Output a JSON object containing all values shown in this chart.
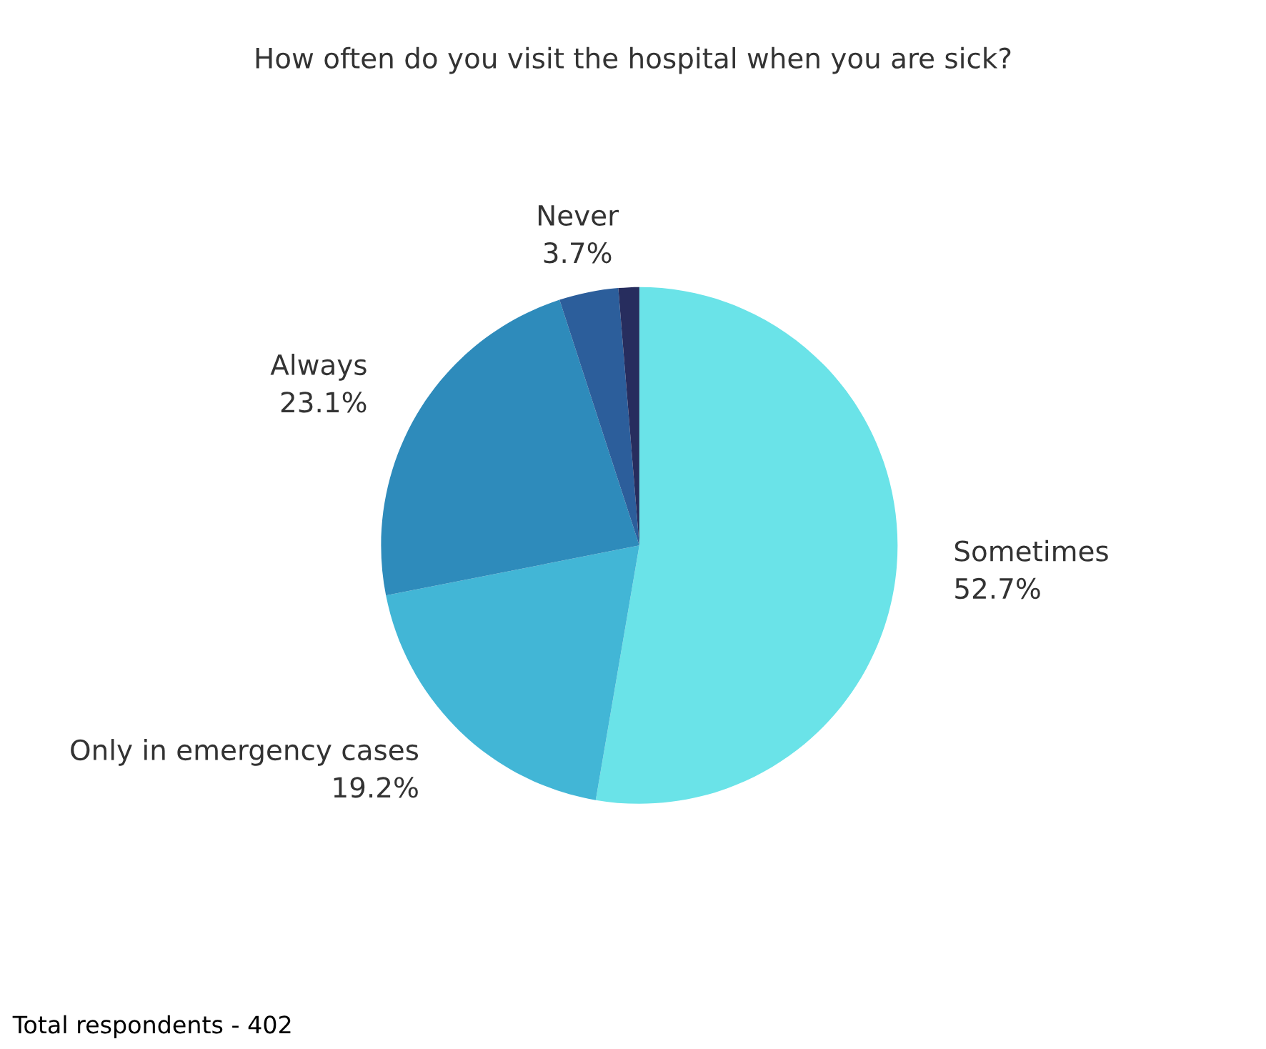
{
  "chart_data": {
    "type": "pie",
    "title": "How often do you visit the hospital when you are sick?",
    "categories": [
      "Sometimes",
      "Only in emergency cases",
      "Always",
      "Never",
      null
    ],
    "values": [
      52.7,
      19.2,
      23.1,
      3.7,
      1.3
    ],
    "value_labels": [
      "52.7%",
      "19.2%",
      "23.1%",
      "3.7%",
      null
    ],
    "colors": [
      "#6ae3e8",
      "#42b6d6",
      "#2e8bbb",
      "#2c5e9b",
      "#272d5e"
    ],
    "annotations": [
      "Total respondents - 402"
    ]
  }
}
